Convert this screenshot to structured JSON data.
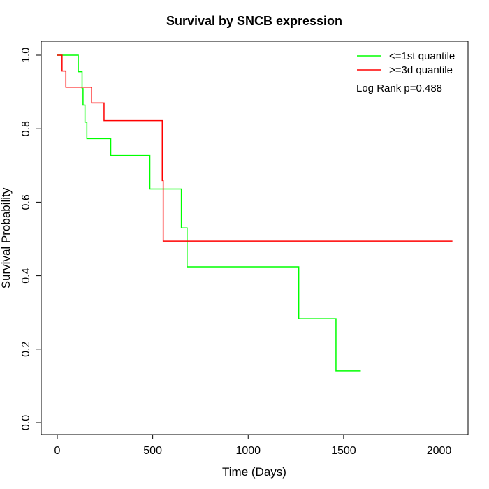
{
  "chart_data": {
    "type": "line",
    "subtype": "kaplan-meier step curve",
    "title": "Survival by SNCB expression",
    "xlabel": "Time (Days)",
    "ylabel": "Survival Probability",
    "xlim": [
      0,
      2070
    ],
    "ylim": [
      0,
      1.0
    ],
    "x_ticks": [
      0,
      500,
      1000,
      1500,
      2000
    ],
    "x_tick_labels": [
      "0",
      "500",
      "1000",
      "1500",
      "2000"
    ],
    "y_ticks": [
      0.0,
      0.2,
      0.4,
      0.6,
      0.8,
      1.0
    ],
    "y_tick_labels": [
      "0.0",
      "0.2",
      "0.4",
      "0.6",
      "0.8",
      "1.0"
    ],
    "grid": false,
    "legend_position": "top-right",
    "annotation": "Log Rank p=0.488",
    "series": [
      {
        "name": "<=1st quantile",
        "color": "#00ff00",
        "steps": [
          [
            0,
            1.0
          ],
          [
            110,
            0.955
          ],
          [
            130,
            0.909
          ],
          [
            135,
            0.864
          ],
          [
            145,
            0.818
          ],
          [
            155,
            0.773
          ],
          [
            280,
            0.727
          ],
          [
            485,
            0.636
          ],
          [
            650,
            0.53
          ],
          [
            680,
            0.424
          ],
          [
            1265,
            0.283
          ],
          [
            1460,
            0.141
          ]
        ],
        "end_x": 1590
      },
      {
        "name": ">=3d quantile",
        "color": "#ff0000",
        "steps": [
          [
            0,
            1.0
          ],
          [
            25,
            0.957
          ],
          [
            45,
            0.913
          ],
          [
            180,
            0.87
          ],
          [
            245,
            0.822
          ],
          [
            550,
            0.659
          ],
          [
            555,
            0.494
          ]
        ],
        "end_x": 2070
      }
    ]
  }
}
